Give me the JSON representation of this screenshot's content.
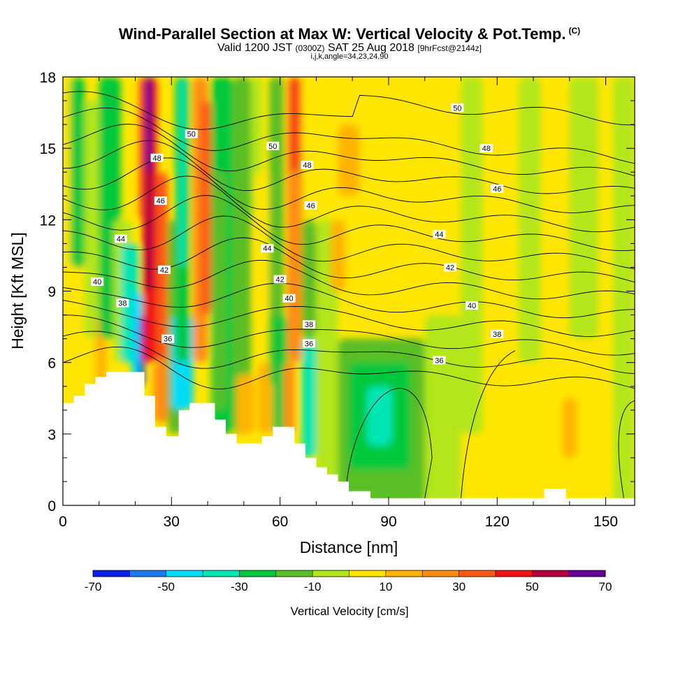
{
  "title": {
    "main": "Wind-Parallel Section at Max W: Vertical Velocity & Pot.Temp.",
    "copyright": "(C)",
    "valid_prefix": "Valid 1200 JST",
    "valid_utc": "(0300Z)",
    "valid_date": "SAT 25 Aug 2018",
    "forecast": "[9hrFcst@2144z]",
    "grid_info": "i,j,k,angle=34,23,24,90"
  },
  "chart_data": {
    "type": "heatmap",
    "xlabel": "Distance [nm]",
    "ylabel": "Height [Kft MSL]",
    "xlim": [
      0,
      158
    ],
    "ylim": [
      0,
      18
    ],
    "xticks": [
      0,
      30,
      60,
      90,
      120,
      150
    ],
    "yticks": [
      0,
      3,
      6,
      9,
      12,
      15,
      18
    ],
    "colorbar": {
      "label": "Vertical Velocity [cm/s]",
      "ticks": [
        -70,
        -50,
        -30,
        -10,
        10,
        30,
        50,
        70
      ],
      "bins": [
        {
          "from": -70,
          "to": -60,
          "color": "#0a1ee6"
        },
        {
          "from": -60,
          "to": -50,
          "color": "#1e78f0"
        },
        {
          "from": -50,
          "to": -40,
          "color": "#00dcf5"
        },
        {
          "from": -40,
          "to": -30,
          "color": "#00e6b4"
        },
        {
          "from": -30,
          "to": -20,
          "color": "#00c83c"
        },
        {
          "from": -20,
          "to": -10,
          "color": "#5abe28"
        },
        {
          "from": -10,
          "to": 0,
          "color": "#b4e61e"
        },
        {
          "from": 0,
          "to": 10,
          "color": "#ffe600"
        },
        {
          "from": 10,
          "to": 20,
          "color": "#ffb400"
        },
        {
          "from": 20,
          "to": 30,
          "color": "#ff8c14"
        },
        {
          "from": 30,
          "to": 40,
          "color": "#ff5a14"
        },
        {
          "from": 40,
          "to": 50,
          "color": "#f01414"
        },
        {
          "from": 50,
          "to": 60,
          "color": "#b4003c"
        },
        {
          "from": 60,
          "to": 70,
          "color": "#640096"
        }
      ]
    },
    "background_value": 5,
    "w_features": [
      {
        "x0": 0,
        "x1": 3,
        "y0": 0,
        "y1": 18,
        "value": 5
      },
      {
        "x0": 2,
        "x1": 6,
        "y0": 10,
        "y1": 18,
        "value": -25
      },
      {
        "x0": 6,
        "x1": 11,
        "y0": 7,
        "y1": 17,
        "value": -5
      },
      {
        "x0": 9,
        "x1": 12,
        "y0": 4.5,
        "y1": 8,
        "value": 15
      },
      {
        "x0": 10,
        "x1": 16,
        "y0": 7,
        "y1": 18,
        "value": -25
      },
      {
        "x0": 14,
        "x1": 19,
        "y0": 6,
        "y1": 12,
        "value": -5
      },
      {
        "x0": 16,
        "x1": 21,
        "y0": 6,
        "y1": 11,
        "value": -35
      },
      {
        "x0": 19,
        "x1": 22,
        "y0": 5,
        "y1": 9,
        "value": -45
      },
      {
        "x0": 21,
        "x1": 22.5,
        "y0": 5,
        "y1": 8,
        "value": -65
      },
      {
        "x0": 21,
        "x1": 24,
        "y0": 12,
        "y1": 18,
        "value": 35
      },
      {
        "x0": 22,
        "x1": 26,
        "y0": 6,
        "y1": 18,
        "value": 45
      },
      {
        "x0": 22.5,
        "x1": 25,
        "y0": 9,
        "y1": 18,
        "value": 55
      },
      {
        "x0": 22.8,
        "x1": 24.5,
        "y0": 14,
        "y1": 18,
        "value": 65
      },
      {
        "x0": 26,
        "x1": 29,
        "y0": 6,
        "y1": 14,
        "value": 35
      },
      {
        "x0": 25,
        "x1": 30,
        "y0": 3.5,
        "y1": 6,
        "value": 25
      },
      {
        "x0": 29,
        "x1": 33,
        "y0": 3,
        "y1": 12,
        "value": -15
      },
      {
        "x0": 30,
        "x1": 36,
        "y0": 4,
        "y1": 8,
        "value": -45
      },
      {
        "x0": 31,
        "x1": 35,
        "y0": 6,
        "y1": 18,
        "value": -25
      },
      {
        "x0": 32,
        "x1": 34,
        "y0": 10,
        "y1": 18,
        "value": -35
      },
      {
        "x0": 36,
        "x1": 40,
        "y0": 6,
        "y1": 18,
        "value": 25
      },
      {
        "x0": 38,
        "x1": 41,
        "y0": 8,
        "y1": 17,
        "value": 35
      },
      {
        "x0": 41,
        "x1": 47,
        "y0": 3,
        "y1": 18,
        "value": -25
      },
      {
        "x0": 42,
        "x1": 45,
        "y0": 4,
        "y1": 14,
        "value": -15
      },
      {
        "x0": 47,
        "x1": 52,
        "y0": 3,
        "y1": 18,
        "value": -15
      },
      {
        "x0": 52,
        "x1": 55,
        "y0": 12,
        "y1": 18,
        "value": -5
      },
      {
        "x0": 48,
        "x1": 53,
        "y0": 3,
        "y1": 5.5,
        "value": 15
      },
      {
        "x0": 53,
        "x1": 57,
        "y0": 8,
        "y1": 14,
        "value": 5
      },
      {
        "x0": 54,
        "x1": 58,
        "y0": 3,
        "y1": 6,
        "value": 15
      },
      {
        "x0": 57,
        "x1": 61,
        "y0": 5,
        "y1": 18,
        "value": -15
      },
      {
        "x0": 58,
        "x1": 62,
        "y0": 3,
        "y1": 8,
        "value": -25
      },
      {
        "x0": 61,
        "x1": 64,
        "y0": 3,
        "y1": 6,
        "value": 25
      },
      {
        "x0": 62,
        "x1": 66,
        "y0": 6,
        "y1": 18,
        "value": 25
      },
      {
        "x0": 63,
        "x1": 65,
        "y0": 14,
        "y1": 18,
        "value": 45
      },
      {
        "x0": 66,
        "x1": 70,
        "y0": 2,
        "y1": 7,
        "value": -35
      },
      {
        "x0": 66,
        "x1": 70,
        "y0": 7,
        "y1": 12,
        "value": -15
      },
      {
        "x0": 70,
        "x1": 76,
        "y0": 0,
        "y1": 12,
        "value": -5
      },
      {
        "x0": 76,
        "x1": 100,
        "y0": 0,
        "y1": 7,
        "value": -15
      },
      {
        "x0": 79,
        "x1": 96,
        "y0": 1.5,
        "y1": 6,
        "value": -25
      },
      {
        "x0": 84,
        "x1": 91,
        "y0": 2.5,
        "y1": 5,
        "value": -35
      },
      {
        "x0": 100,
        "x1": 110,
        "y0": 0,
        "y1": 8,
        "value": -5
      },
      {
        "x0": 110,
        "x1": 116,
        "y0": 3,
        "y1": 18,
        "value": -5
      },
      {
        "x0": 126,
        "x1": 132,
        "y0": 6,
        "y1": 18,
        "value": -5
      },
      {
        "x0": 140,
        "x1": 148,
        "y0": 7,
        "y1": 18,
        "value": -5
      },
      {
        "x0": 152,
        "x1": 158,
        "y0": 0,
        "y1": 18,
        "value": -5
      },
      {
        "x0": 74,
        "x1": 78,
        "y0": 9,
        "y1": 12,
        "value": 15
      },
      {
        "x0": 76,
        "x1": 82,
        "y0": 13,
        "y1": 16,
        "value": 15
      },
      {
        "x0": 138,
        "x1": 142,
        "y0": 2,
        "y1": 4.5,
        "value": 15
      }
    ],
    "terrain_kft": [
      {
        "x": 0,
        "y": 4.3
      },
      {
        "x": 3,
        "y": 4.3
      },
      {
        "x": 3,
        "y": 4.6
      },
      {
        "x": 6,
        "y": 4.6
      },
      {
        "x": 6,
        "y": 5.1
      },
      {
        "x": 9,
        "y": 5.1
      },
      {
        "x": 9,
        "y": 5.4
      },
      {
        "x": 12,
        "y": 5.4
      },
      {
        "x": 12,
        "y": 5.6
      },
      {
        "x": 22.5,
        "y": 5.6
      },
      {
        "x": 22.5,
        "y": 4.6
      },
      {
        "x": 25.5,
        "y": 4.6
      },
      {
        "x": 25.5,
        "y": 3.3
      },
      {
        "x": 28.5,
        "y": 3.3
      },
      {
        "x": 28.5,
        "y": 2.9
      },
      {
        "x": 32,
        "y": 2.9
      },
      {
        "x": 32,
        "y": 4
      },
      {
        "x": 35,
        "y": 4
      },
      {
        "x": 35,
        "y": 4.3
      },
      {
        "x": 42,
        "y": 4.3
      },
      {
        "x": 42,
        "y": 3.6
      },
      {
        "x": 45,
        "y": 3.6
      },
      {
        "x": 45,
        "y": 3
      },
      {
        "x": 48,
        "y": 3
      },
      {
        "x": 48,
        "y": 2.6
      },
      {
        "x": 55,
        "y": 2.6
      },
      {
        "x": 55,
        "y": 2.9
      },
      {
        "x": 58,
        "y": 2.9
      },
      {
        "x": 58,
        "y": 3.3
      },
      {
        "x": 64,
        "y": 3.3
      },
      {
        "x": 64,
        "y": 2.6
      },
      {
        "x": 67,
        "y": 2.6
      },
      {
        "x": 67,
        "y": 2
      },
      {
        "x": 70,
        "y": 2
      },
      {
        "x": 70,
        "y": 1.6
      },
      {
        "x": 73,
        "y": 1.6
      },
      {
        "x": 73,
        "y": 1.3
      },
      {
        "x": 76,
        "y": 1.3
      },
      {
        "x": 76,
        "y": 1
      },
      {
        "x": 79,
        "y": 1
      },
      {
        "x": 79,
        "y": 0.6
      },
      {
        "x": 85,
        "y": 0.6
      },
      {
        "x": 85,
        "y": 0.3
      },
      {
        "x": 133,
        "y": 0.3
      },
      {
        "x": 133,
        "y": 0.7
      },
      {
        "x": 139,
        "y": 0.7
      },
      {
        "x": 139,
        "y": 0.3
      },
      {
        "x": 158,
        "y": 0.3
      }
    ],
    "theta_contours": [
      {
        "value": 36,
        "labels": [
          {
            "x": 29,
            "y": 7
          },
          {
            "x": 68,
            "y": 6.8
          },
          {
            "x": 104,
            "y": 6.1
          }
        ]
      },
      {
        "x_hint": 0,
        "value": 37,
        "labels": []
      },
      {
        "value": 38,
        "labels": [
          {
            "x": 16.5,
            "y": 8.5
          },
          {
            "x": 68,
            "y": 7.6
          },
          {
            "x": 120,
            "y": 7.2
          }
        ]
      },
      {
        "value": 39,
        "labels": []
      },
      {
        "value": 40,
        "labels": [
          {
            "x": 9.5,
            "y": 9.4
          },
          {
            "x": 62.5,
            "y": 8.7
          },
          {
            "x": 113,
            "y": 8.4
          }
        ]
      },
      {
        "value": 41,
        "labels": []
      },
      {
        "value": 42,
        "labels": [
          {
            "x": 28,
            "y": 9.9
          },
          {
            "x": 60,
            "y": 9.5
          },
          {
            "x": 107,
            "y": 10
          }
        ]
      },
      {
        "value": 43,
        "labels": []
      },
      {
        "value": 44,
        "labels": [
          {
            "x": 16,
            "y": 11.2
          },
          {
            "x": 56.5,
            "y": 10.8
          },
          {
            "x": 104,
            "y": 11.4
          }
        ]
      },
      {
        "value": 45,
        "labels": []
      },
      {
        "value": 46,
        "labels": [
          {
            "x": 27,
            "y": 12.8
          },
          {
            "x": 68.5,
            "y": 12.6
          },
          {
            "x": 120,
            "y": 13.3
          }
        ]
      },
      {
        "value": 47,
        "labels": []
      },
      {
        "value": 48,
        "labels": [
          {
            "x": 26,
            "y": 14.6
          },
          {
            "x": 67.5,
            "y": 14.3
          },
          {
            "x": 117,
            "y": 15
          }
        ]
      },
      {
        "value": 49,
        "labels": []
      },
      {
        "value": 50,
        "labels": [
          {
            "x": 35.5,
            "y": 15.6
          },
          {
            "x": 58,
            "y": 15.1
          },
          {
            "x": 109,
            "y": 16.7
          }
        ]
      }
    ]
  }
}
